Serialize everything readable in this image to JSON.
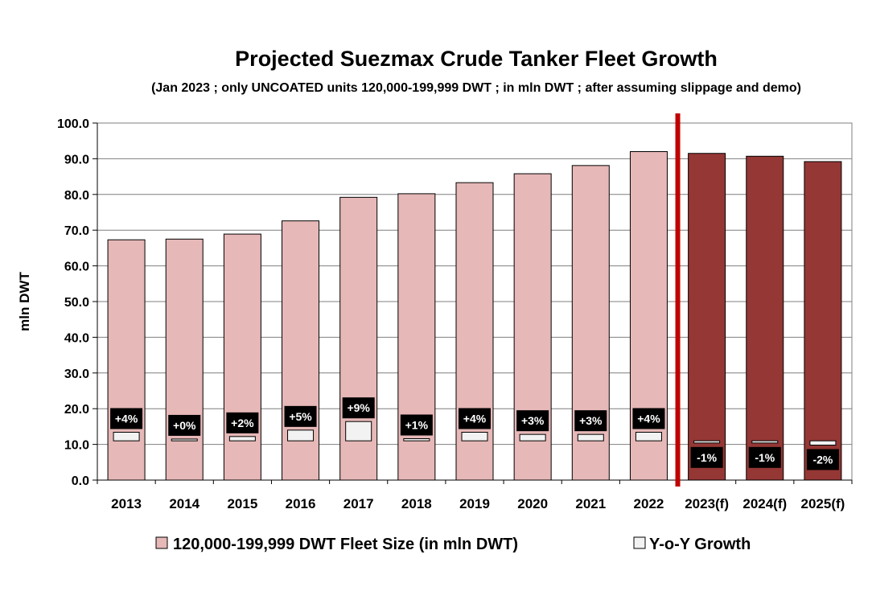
{
  "chart_data": {
    "type": "bar",
    "title": "Projected Suezmax Crude Tanker Fleet Growth",
    "subtitle": "(Jan 2023 ; only UNCOATED units 120,000-199,999 DWT ; in mln DWT ; after assuming slippage and demo)",
    "ylabel": "mln DWT",
    "xlabel": "",
    "ylim": [
      0,
      100
    ],
    "yticks": [
      "0.0",
      "10.0",
      "20.0",
      "30.0",
      "40.0",
      "50.0",
      "60.0",
      "70.0",
      "80.0",
      "90.0",
      "100.0"
    ],
    "categories": [
      "2013",
      "2014",
      "2015",
      "2016",
      "2017",
      "2018",
      "2019",
      "2020",
      "2021",
      "2022",
      "2023(f)",
      "2024(f)",
      "2025(f)"
    ],
    "forecast": [
      false,
      false,
      false,
      false,
      false,
      false,
      false,
      false,
      false,
      false,
      true,
      true,
      true
    ],
    "grid": true,
    "legend_position": "bottom",
    "colors": {
      "fleet_actual": "#e6b8b7",
      "fleet_forecast": "#953735",
      "growth_box": "#f2f2f2",
      "divider": "#c00000",
      "label_bg": "#000000"
    },
    "series": [
      {
        "name": "120,000-199,999 DWT Fleet Size (in mln DWT)",
        "values": [
          67.3,
          67.5,
          68.9,
          72.6,
          79.2,
          80.2,
          83.3,
          85.8,
          88.1,
          92.0,
          91.5,
          90.7,
          89.2
        ]
      },
      {
        "name": "Y-o-Y Growth",
        "baseline": 11.0,
        "values": [
          4,
          0,
          2,
          5,
          9,
          1,
          4,
          3,
          3,
          4,
          -1,
          -1,
          -2
        ],
        "labels": [
          "+4%",
          "+0%",
          "+2%",
          "+5%",
          "+9%",
          "+1%",
          "+4%",
          "+3%",
          "+3%",
          "+4%",
          "-1%",
          "-1%",
          "-2%"
        ]
      }
    ]
  }
}
